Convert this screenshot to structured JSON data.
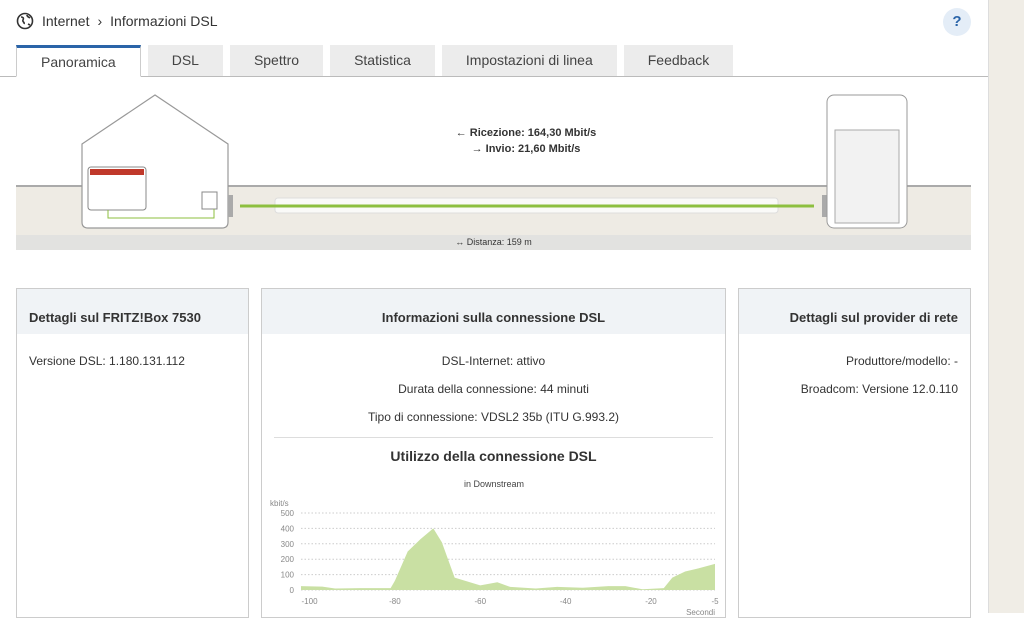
{
  "breadcrumb": {
    "parent": "Internet",
    "separator": "›",
    "current": "Informazioni DSL"
  },
  "help_label": "?",
  "tabs": [
    {
      "label": "Panoramica",
      "active": true
    },
    {
      "label": "DSL"
    },
    {
      "label": "Spettro"
    },
    {
      "label": "Statistica"
    },
    {
      "label": "Impostazioni di linea"
    },
    {
      "label": "Feedback"
    }
  ],
  "line": {
    "rx": "← Ricezione: 164,30 Mbit/s",
    "tx": "→ Invio: 21,60 Mbit/s",
    "distance": "↔ Distanza: 159 m",
    "color": "#8dbf3f"
  },
  "box_card": {
    "title": "Dettagli sul FRITZ!Box 7530",
    "version": "Versione DSL: 1.180.131.112"
  },
  "conn_card": {
    "title": "Informazioni sulla connessione DSL",
    "status": "DSL-Internet: attivo",
    "duration": "Durata della connessione: 44 minuti",
    "type": "Tipo di connessione: VDSL2 35b (ITU G.993.2)",
    "usage_title": "Utilizzo della connessione DSL"
  },
  "provider_card": {
    "title": "Dettagli sul provider di rete",
    "model": "Produttore/modello: -",
    "broadcom": "Broadcom: Versione 12.0.110"
  },
  "chart_data": {
    "type": "area",
    "title": "in Downstream",
    "ylabel": "kbit/s",
    "xlabel": "Secondi",
    "xlim": [
      -102,
      -5
    ],
    "ylim": [
      0,
      500
    ],
    "xticks": [
      -100,
      -80,
      -60,
      -40,
      -20,
      -5
    ],
    "yticks": [
      0,
      100,
      200,
      300,
      400,
      500
    ],
    "grid": true,
    "color": "#c9e0a3",
    "x": [
      -102,
      -97,
      -94,
      -88,
      -81,
      -80,
      -77,
      -74,
      -71,
      -69,
      -66,
      -63,
      -60,
      -56,
      -53,
      -47,
      -42,
      -36,
      -30,
      -26,
      -22,
      -17,
      -15,
      -12,
      -9,
      -5
    ],
    "y": [
      25,
      22,
      10,
      12,
      12,
      60,
      250,
      330,
      400,
      310,
      80,
      55,
      30,
      50,
      20,
      10,
      20,
      15,
      25,
      25,
      5,
      12,
      80,
      120,
      140,
      170
    ]
  }
}
